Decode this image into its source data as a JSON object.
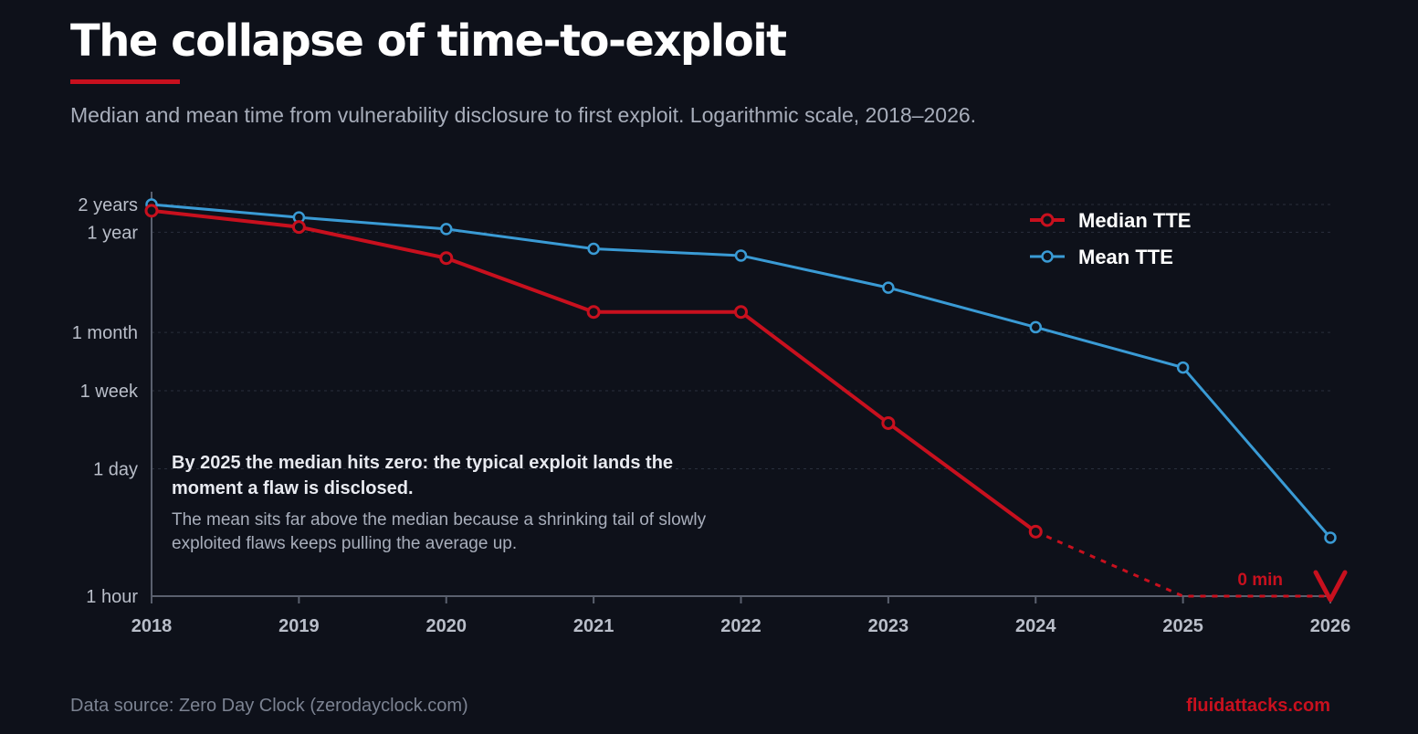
{
  "header": {
    "title": "The collapse of time-to-exploit",
    "subtitle": "Median and mean time from vulnerability disclosure to first exploit. Logarithmic scale, 2018–2026."
  },
  "annotation": {
    "headline": "By 2025 the median hits zero: the typical exploit lands the moment a flaw is disclosed.",
    "body": "The mean sits far above the median because a shrinking tail of slowly exploited flaws keeps pulling the average up."
  },
  "footer": {
    "source": "Data source: Zero Day Clock (zerodayclock.com)",
    "brand": "fluidattacks.com"
  },
  "colors": {
    "background": "#0e111a",
    "median": "#c8101e",
    "mean": "#3a9bd5",
    "axis": "#5a606e",
    "grid": "#2a2f3c",
    "tick_text": "#b9bec9"
  },
  "chart_data": {
    "type": "line",
    "y_scale": "log",
    "y_unit": "hours",
    "ylim": [
      1,
      17520
    ],
    "x": [
      2018,
      2019,
      2020,
      2021,
      2022,
      2023,
      2024,
      2025,
      2026
    ],
    "x_ticks": [
      "2018",
      "2019",
      "2020",
      "2021",
      "2022",
      "2023",
      "2024",
      "2025",
      "2026"
    ],
    "y_ticks": [
      {
        "label": "2 years",
        "value": 17520
      },
      {
        "label": "1 year",
        "value": 8760
      },
      {
        "label": "1 month",
        "value": 720
      },
      {
        "label": "1 week",
        "value": 168
      },
      {
        "label": "1 day",
        "value": 24
      },
      {
        "label": "1 hour",
        "value": 1
      }
    ],
    "grid": true,
    "legend_position": "top-right",
    "series": [
      {
        "name": "Median TTE",
        "color": "#c8101e",
        "values": [
          15000,
          10000,
          4600,
          1200,
          1200,
          75,
          5,
          1,
          1
        ],
        "dashed_from_index": 6,
        "end_label": "0 min"
      },
      {
        "name": "Mean TTE",
        "color": "#3a9bd5",
        "values": [
          17500,
          12700,
          9500,
          5800,
          4900,
          2200,
          820,
          300,
          4.3
        ]
      }
    ]
  }
}
